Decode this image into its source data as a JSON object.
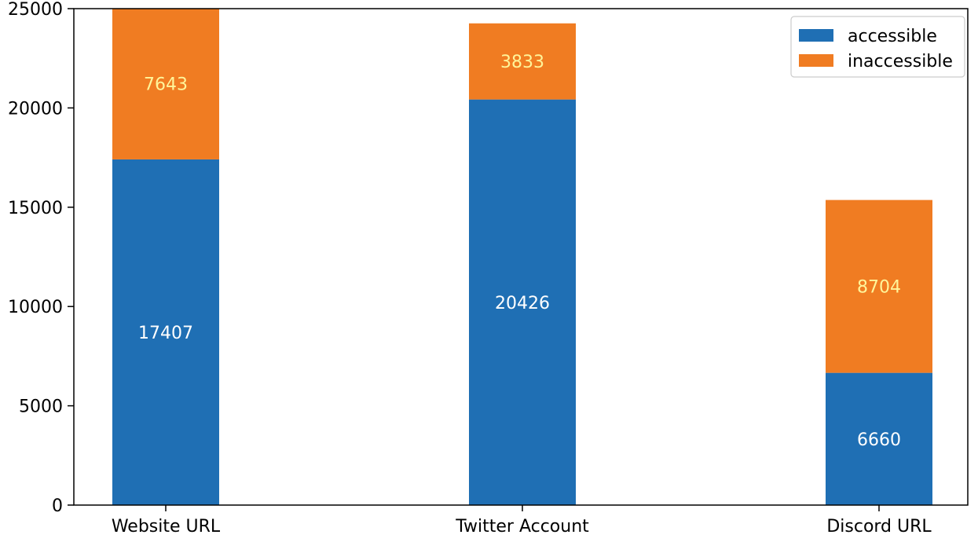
{
  "chart_data": {
    "type": "bar",
    "stacked": true,
    "categories": [
      "Website URL",
      "Twitter Account",
      "Discord URL"
    ],
    "series": [
      {
        "name": "accessible",
        "values": [
          17407,
          20426,
          6660
        ],
        "color": "#1f6fb4",
        "label_color": "#ffffff"
      },
      {
        "name": "inaccessible",
        "values": [
          7643,
          3833,
          8704
        ],
        "color": "#f07c22",
        "label_color": "#fff59a"
      }
    ],
    "ylim": [
      0,
      25000
    ],
    "yticks": [
      0,
      5000,
      10000,
      15000,
      20000,
      25000
    ],
    "grid": false,
    "legend_position": "top-right",
    "title": "",
    "xlabel": "",
    "ylabel": ""
  }
}
